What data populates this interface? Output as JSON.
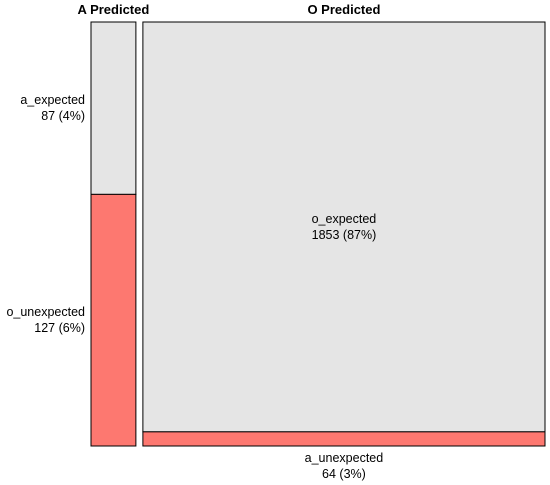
{
  "chart_data": {
    "type": "mosaic",
    "title": "",
    "columns": [
      "A Predicted",
      "O Predicted"
    ],
    "colors": {
      "expected": "#e5e5e5",
      "unexpected": "#fd7870",
      "border": "#000000"
    },
    "cells": [
      {
        "column": "A Predicted",
        "name": "a_expected",
        "value": 87,
        "percent_label": "87 (4%)",
        "kind": "expected"
      },
      {
        "column": "A Predicted",
        "name": "o_unexpected",
        "value": 127,
        "percent_label": "127 (6%)",
        "kind": "unexpected"
      },
      {
        "column": "O Predicted",
        "name": "o_expected",
        "value": 1853,
        "percent_label": "1853 (87%)",
        "kind": "expected"
      },
      {
        "column": "O Predicted",
        "name": "a_unexpected",
        "value": 64,
        "percent_label": "64 (3%)",
        "kind": "unexpected"
      }
    ]
  }
}
